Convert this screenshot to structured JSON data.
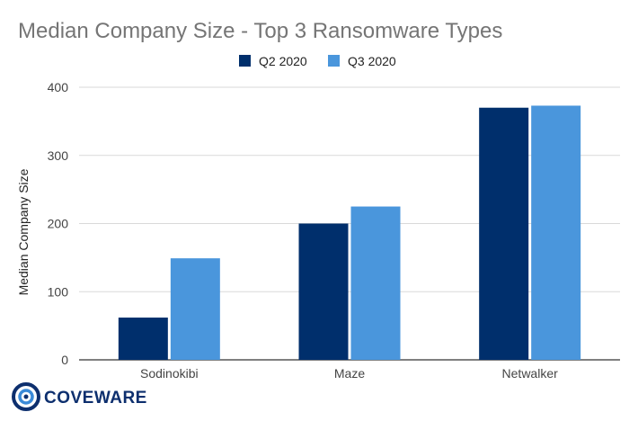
{
  "chart_data": {
    "type": "bar",
    "title": "Median Company Size - Top 3 Ransomware Types",
    "ylabel": "Median Company Size",
    "xlabel": "",
    "categories": [
      "Sodinokibi",
      "Maze",
      "Netwalker"
    ],
    "series": [
      {
        "name": "Q2 2020",
        "values": [
          62,
          200,
          370
        ],
        "color": "#002f6c"
      },
      {
        "name": "Q3 2020",
        "values": [
          149,
          225,
          373
        ],
        "color": "#4a96dc"
      }
    ],
    "ylim": [
      0,
      400
    ],
    "yticks": [
      0,
      100,
      200,
      300,
      400
    ],
    "grid": true,
    "legend_position": "top-center"
  },
  "logo": {
    "text": "COVEWARE",
    "icon": "coveware-ring-icon"
  }
}
